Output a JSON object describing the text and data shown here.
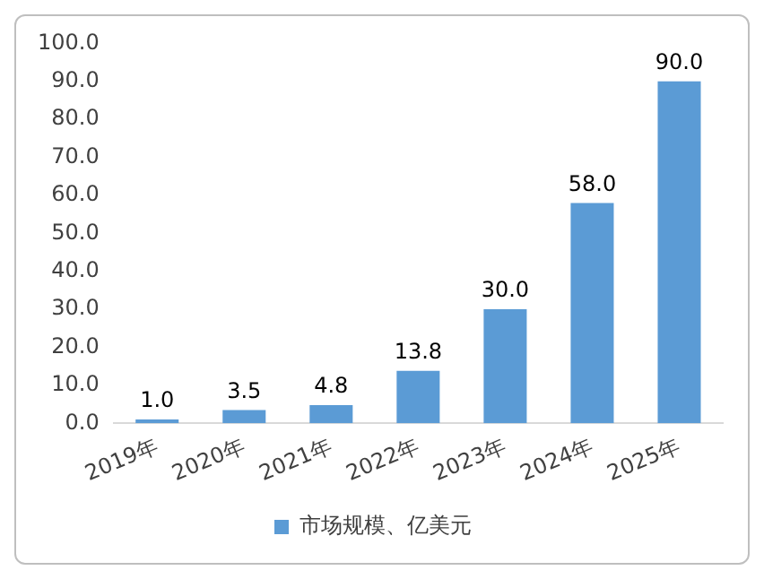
{
  "chart_data": {
    "type": "bar",
    "categories": [
      "2019年",
      "2020年",
      "2021年",
      "2022年",
      "2023年",
      "2024年",
      "2025年"
    ],
    "series": [
      {
        "name": "市场规模、亿美元",
        "color": "#5b9bd5",
        "values": [
          1.0,
          3.5,
          4.8,
          13.8,
          30.0,
          58.0,
          90.0
        ],
        "value_labels": [
          "1.0",
          "3.5",
          "4.8",
          "13.8",
          "30.0",
          "58.0",
          "90.0"
        ]
      }
    ],
    "ylim": [
      0,
      100
    ],
    "yticks": [
      {
        "value": 0,
        "label": "0.0"
      },
      {
        "value": 10,
        "label": "10.0"
      },
      {
        "value": 20,
        "label": "20.0"
      },
      {
        "value": 30,
        "label": "30.0"
      },
      {
        "value": 40,
        "label": "40.0"
      },
      {
        "value": 50,
        "label": "50.0"
      },
      {
        "value": 60,
        "label": "60.0"
      },
      {
        "value": 70,
        "label": "70.0"
      },
      {
        "value": 80,
        "label": "80.0"
      },
      {
        "value": 90,
        "label": "90.0"
      },
      {
        "value": 100,
        "label": "100.0"
      }
    ],
    "grid": false,
    "legend": "bottom"
  }
}
